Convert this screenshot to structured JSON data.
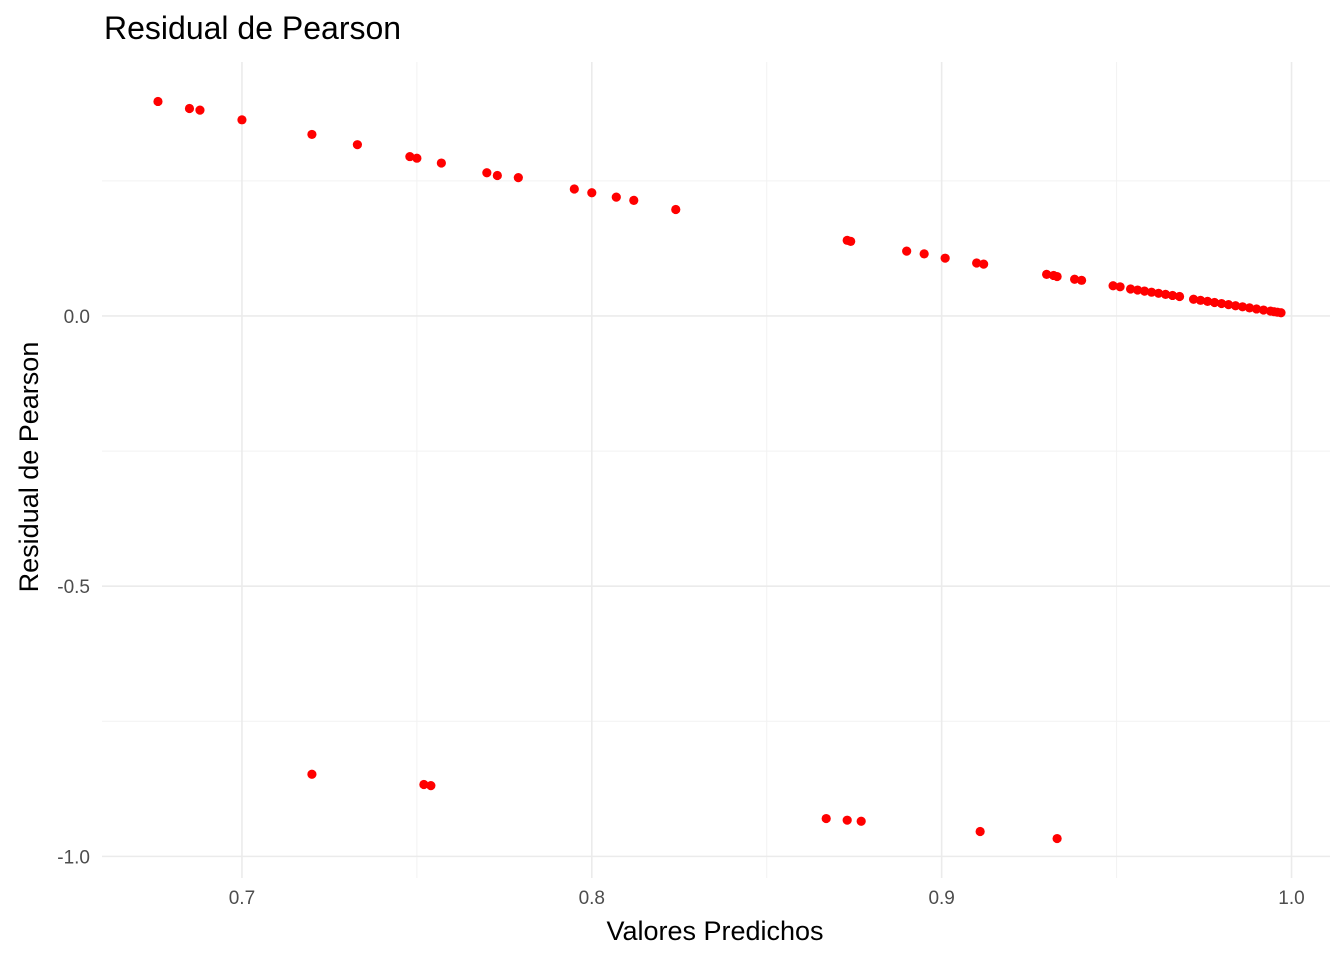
{
  "chart_data": {
    "type": "scatter",
    "title": "Residual de Pearson",
    "xlabel": "Valores Predichos",
    "ylabel": "Residual de Pearson",
    "xlim": [
      0.66,
      1.011
    ],
    "ylim": [
      -1.04,
      0.47
    ],
    "x_ticks": [
      0.7,
      0.8,
      0.9,
      1.0
    ],
    "x_tick_labels": [
      "0.7",
      "0.8",
      "0.9",
      "1.0"
    ],
    "y_ticks": [
      -1.0,
      -0.5,
      0.0
    ],
    "y_tick_labels": [
      "-1.0",
      "-0.5",
      "0.0"
    ],
    "grid": true,
    "point_color": "#ff0000",
    "points": [
      {
        "x": 0.676,
        "y": 0.397
      },
      {
        "x": 0.685,
        "y": 0.384
      },
      {
        "x": 0.688,
        "y": 0.381
      },
      {
        "x": 0.7,
        "y": 0.363
      },
      {
        "x": 0.72,
        "y": 0.336
      },
      {
        "x": 0.733,
        "y": 0.317
      },
      {
        "x": 0.748,
        "y": 0.295
      },
      {
        "x": 0.75,
        "y": 0.292
      },
      {
        "x": 0.757,
        "y": 0.283
      },
      {
        "x": 0.77,
        "y": 0.265
      },
      {
        "x": 0.773,
        "y": 0.26
      },
      {
        "x": 0.779,
        "y": 0.256
      },
      {
        "x": 0.795,
        "y": 0.235
      },
      {
        "x": 0.8,
        "y": 0.228
      },
      {
        "x": 0.807,
        "y": 0.22
      },
      {
        "x": 0.812,
        "y": 0.214
      },
      {
        "x": 0.824,
        "y": 0.197
      },
      {
        "x": 0.873,
        "y": 0.14
      },
      {
        "x": 0.874,
        "y": 0.138
      },
      {
        "x": 0.89,
        "y": 0.12
      },
      {
        "x": 0.895,
        "y": 0.115
      },
      {
        "x": 0.901,
        "y": 0.107
      },
      {
        "x": 0.91,
        "y": 0.098
      },
      {
        "x": 0.912,
        "y": 0.096
      },
      {
        "x": 0.93,
        "y": 0.077
      },
      {
        "x": 0.932,
        "y": 0.075
      },
      {
        "x": 0.933,
        "y": 0.073
      },
      {
        "x": 0.938,
        "y": 0.068
      },
      {
        "x": 0.94,
        "y": 0.066
      },
      {
        "x": 0.949,
        "y": 0.056
      },
      {
        "x": 0.951,
        "y": 0.054
      },
      {
        "x": 0.954,
        "y": 0.05
      },
      {
        "x": 0.956,
        "y": 0.048
      },
      {
        "x": 0.958,
        "y": 0.046
      },
      {
        "x": 0.96,
        "y": 0.044
      },
      {
        "x": 0.962,
        "y": 0.042
      },
      {
        "x": 0.964,
        "y": 0.04
      },
      {
        "x": 0.966,
        "y": 0.038
      },
      {
        "x": 0.968,
        "y": 0.036
      },
      {
        "x": 0.972,
        "y": 0.031
      },
      {
        "x": 0.974,
        "y": 0.029
      },
      {
        "x": 0.976,
        "y": 0.027
      },
      {
        "x": 0.978,
        "y": 0.025
      },
      {
        "x": 0.98,
        "y": 0.023
      },
      {
        "x": 0.982,
        "y": 0.021
      },
      {
        "x": 0.984,
        "y": 0.019
      },
      {
        "x": 0.986,
        "y": 0.017
      },
      {
        "x": 0.988,
        "y": 0.015
      },
      {
        "x": 0.99,
        "y": 0.013
      },
      {
        "x": 0.992,
        "y": 0.011
      },
      {
        "x": 0.994,
        "y": 0.009
      },
      {
        "x": 0.995,
        "y": 0.008
      },
      {
        "x": 0.996,
        "y": 0.007
      },
      {
        "x": 0.997,
        "y": 0.006
      },
      {
        "x": 0.72,
        "y": -0.848
      },
      {
        "x": 0.752,
        "y": -0.867
      },
      {
        "x": 0.754,
        "y": -0.869
      },
      {
        "x": 0.867,
        "y": -0.93
      },
      {
        "x": 0.873,
        "y": -0.933
      },
      {
        "x": 0.877,
        "y": -0.935
      },
      {
        "x": 0.911,
        "y": -0.954
      },
      {
        "x": 0.933,
        "y": -0.967
      }
    ]
  }
}
